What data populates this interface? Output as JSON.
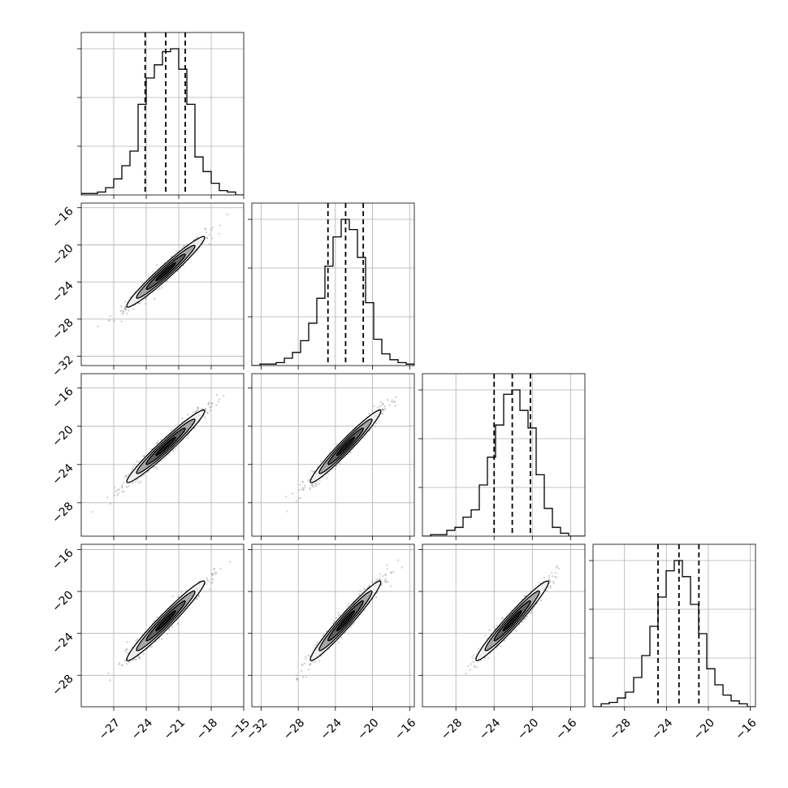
{
  "chart_data": {
    "type": "corner",
    "grid": true,
    "n_params": 4,
    "hist_bins": 20,
    "param_ranges": [
      [
        -30,
        -15
      ],
      [
        -33,
        -15.5
      ],
      [
        -31.5,
        -14.5
      ],
      [
        -31,
        -15.5
      ]
    ],
    "param_ticks": [
      [
        -27,
        -24,
        -21,
        -18,
        -15
      ],
      [
        -32,
        -28,
        -24,
        -20,
        -16
      ],
      [
        -28,
        -24,
        -20,
        -16
      ],
      [
        -28,
        -24,
        -20,
        -16
      ]
    ],
    "row_ticks": [
      [],
      [
        -16,
        -20,
        -24,
        -28,
        -32
      ],
      [
        -16,
        -20,
        -24,
        -28
      ],
      [
        -16,
        -20,
        -24,
        -28
      ]
    ],
    "tick_labels": {
      "p0": [
        "−27",
        "−24",
        "−21",
        "−18",
        "−15"
      ],
      "p1": [
        "−32",
        "−28",
        "−24",
        "−20",
        "−16"
      ],
      "p2": [
        "−28",
        "−24",
        "−20",
        "−16"
      ],
      "p3": [
        "−28",
        "−24",
        "−20",
        "−16"
      ]
    },
    "quantiles_16_50_84": [
      [
        -24.1,
        -22.2,
        -20.4
      ],
      [
        -24.8,
        -22.9,
        -21.0
      ],
      [
        -24.0,
        -22.1,
        -20.2
      ],
      [
        -24.8,
        -22.8,
        -20.9
      ]
    ],
    "histograms": [
      {
        "bin_centers": [
          -29.6,
          -28.9,
          -28.1,
          -27.4,
          -26.6,
          -25.9,
          -25.1,
          -24.4,
          -23.6,
          -22.9,
          -22.1,
          -21.4,
          -20.6,
          -19.9,
          -19.1,
          -18.4,
          -17.6,
          -16.9,
          -16.1,
          -15.4
        ],
        "density": [
          0.01,
          0.01,
          0.02,
          0.05,
          0.11,
          0.2,
          0.3,
          0.62,
          0.8,
          0.89,
          0.98,
          1.0,
          0.86,
          0.62,
          0.26,
          0.16,
          0.08,
          0.03,
          0.02,
          0.0
        ]
      },
      {
        "bin_centers": [
          -32.6,
          -31.7,
          -30.8,
          -29.9,
          -29.0,
          -28.1,
          -27.2,
          -26.3,
          -25.4,
          -24.5,
          -23.6,
          -22.7,
          -21.8,
          -20.9,
          -20.0,
          -19.1,
          -18.2,
          -17.3,
          -16.4,
          -15.5
        ],
        "density": [
          0.0,
          0.01,
          0.01,
          0.02,
          0.05,
          0.09,
          0.17,
          0.29,
          0.46,
          0.68,
          0.88,
          1.0,
          0.93,
          0.74,
          0.43,
          0.18,
          0.08,
          0.04,
          0.02,
          0.01
        ]
      },
      {
        "bin_centers": [
          -31.1,
          -30.2,
          -29.4,
          -28.5,
          -27.7,
          -26.8,
          -26.0,
          -25.1,
          -24.3,
          -23.4,
          -22.6,
          -21.7,
          -20.9,
          -20.0,
          -19.2,
          -18.3,
          -17.5,
          -16.6,
          -15.8,
          -14.9
        ],
        "density": [
          0.0,
          0.01,
          0.01,
          0.04,
          0.06,
          0.13,
          0.18,
          0.35,
          0.54,
          0.76,
          0.97,
          1.0,
          0.86,
          0.74,
          0.42,
          0.19,
          0.06,
          0.02,
          0.0,
          0.0
        ]
      },
      {
        "bin_centers": [
          -30.6,
          -29.8,
          -28.9,
          -28.1,
          -27.3,
          -26.5,
          -25.7,
          -24.9,
          -24.1,
          -23.3,
          -22.5,
          -21.6,
          -20.8,
          -20.0,
          -19.2,
          -18.4,
          -17.6,
          -16.8,
          -16.0,
          -15.1
        ],
        "density": [
          0.0,
          0.02,
          0.03,
          0.06,
          0.1,
          0.2,
          0.35,
          0.55,
          0.75,
          0.93,
          1.0,
          0.89,
          0.7,
          0.5,
          0.26,
          0.15,
          0.08,
          0.04,
          0.02,
          0.0
        ]
      }
    ],
    "pairs": [
      {
        "x_param": 0,
        "y_param": 1,
        "mean": [
          -22.2,
          -22.9
        ],
        "sd": [
          1.8,
          1.9
        ],
        "corr": 0.97,
        "n_points": 700
      },
      {
        "x_param": 0,
        "y_param": 2,
        "mean": [
          -22.2,
          -22.1
        ],
        "sd": [
          1.8,
          1.9
        ],
        "corr": 0.97,
        "n_points": 700
      },
      {
        "x_param": 1,
        "y_param": 2,
        "mean": [
          -22.9,
          -22.1
        ],
        "sd": [
          1.9,
          1.9
        ],
        "corr": 0.97,
        "n_points": 700
      },
      {
        "x_param": 0,
        "y_param": 3,
        "mean": [
          -22.2,
          -22.8
        ],
        "sd": [
          1.8,
          1.9
        ],
        "corr": 0.97,
        "n_points": 700
      },
      {
        "x_param": 1,
        "y_param": 3,
        "mean": [
          -22.9,
          -22.8
        ],
        "sd": [
          1.9,
          1.9
        ],
        "corr": 0.97,
        "n_points": 700
      },
      {
        "x_param": 2,
        "y_param": 3,
        "mean": [
          -22.1,
          -22.8
        ],
        "sd": [
          1.9,
          1.9
        ],
        "corr": 0.97,
        "n_points": 700
      }
    ],
    "contour_levels_sigma": [
      0.5,
      1.0,
      1.5,
      2.0
    ],
    "colors": {
      "axis": "#000000",
      "grid": "#b0b0b0",
      "points": "#808080",
      "contour": "#000000"
    }
  }
}
